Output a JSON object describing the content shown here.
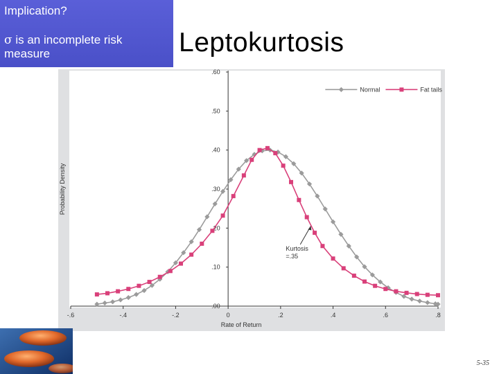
{
  "callout": {
    "question": "Implication?",
    "sigma_symbol": "σ",
    "statement": " is an incomplete risk measure"
  },
  "slide_title": "Leptokurtosis",
  "page_number": "5-35",
  "colors": {
    "callout_bg": "#4f55d0",
    "normal_series": "#9b9b9b",
    "fat_series": "#d9407a",
    "plot_bg": "#ffffff",
    "frame_bg": "#dfe0e2"
  },
  "chart_data": {
    "type": "line",
    "title": "",
    "xlabel": "Rate of Return",
    "ylabel": "Probability Density",
    "xlim": [
      -0.6,
      0.8
    ],
    "ylim": [
      0,
      0.6
    ],
    "x_ticks": [
      -0.6,
      -0.4,
      -0.2,
      0,
      0.2,
      0.4,
      0.6,
      0.8
    ],
    "x_tick_labels": [
      "-.6",
      "-.4",
      "-.2",
      "0",
      ".2",
      ".4",
      ".6",
      ".8"
    ],
    "y_ticks": [
      0,
      0.1,
      0.2,
      0.3,
      0.4,
      0.5,
      0.6
    ],
    "y_tick_labels": [
      ".00",
      ".10",
      ".20",
      ".30",
      ".40",
      ".50",
      ".60"
    ],
    "grid": false,
    "legend_position": "top-right",
    "series": [
      {
        "name": "Normal",
        "marker": "diamond",
        "points": [
          [
            -0.5,
            0.005
          ],
          [
            -0.47,
            0.008
          ],
          [
            -0.44,
            0.011
          ],
          [
            -0.41,
            0.016
          ],
          [
            -0.38,
            0.022
          ],
          [
            -0.35,
            0.03
          ],
          [
            -0.32,
            0.04
          ],
          [
            -0.29,
            0.053
          ],
          [
            -0.26,
            0.069
          ],
          [
            -0.23,
            0.088
          ],
          [
            -0.2,
            0.111
          ],
          [
            -0.17,
            0.137
          ],
          [
            -0.14,
            0.165
          ],
          [
            -0.11,
            0.196
          ],
          [
            -0.08,
            0.229
          ],
          [
            -0.05,
            0.262
          ],
          [
            -0.02,
            0.294
          ],
          [
            0.01,
            0.324
          ],
          [
            0.04,
            0.351
          ],
          [
            0.07,
            0.373
          ],
          [
            0.1,
            0.389
          ],
          [
            0.13,
            0.398
          ],
          [
            0.16,
            0.4
          ],
          [
            0.19,
            0.395
          ],
          [
            0.22,
            0.383
          ],
          [
            0.25,
            0.365
          ],
          [
            0.28,
            0.341
          ],
          [
            0.31,
            0.313
          ],
          [
            0.34,
            0.282
          ],
          [
            0.37,
            0.249
          ],
          [
            0.4,
            0.216
          ],
          [
            0.43,
            0.184
          ],
          [
            0.46,
            0.154
          ],
          [
            0.49,
            0.126
          ],
          [
            0.52,
            0.101
          ],
          [
            0.55,
            0.08
          ],
          [
            0.58,
            0.062
          ],
          [
            0.61,
            0.047
          ],
          [
            0.64,
            0.035
          ],
          [
            0.67,
            0.025
          ],
          [
            0.7,
            0.018
          ],
          [
            0.73,
            0.013
          ],
          [
            0.76,
            0.009
          ],
          [
            0.79,
            0.006
          ],
          [
            0.8,
            0.005
          ]
        ]
      },
      {
        "name": "Fat tails",
        "marker": "square",
        "points": [
          [
            -0.5,
            0.03
          ],
          [
            -0.46,
            0.033
          ],
          [
            -0.42,
            0.038
          ],
          [
            -0.38,
            0.044
          ],
          [
            -0.34,
            0.052
          ],
          [
            -0.3,
            0.062
          ],
          [
            -0.26,
            0.075
          ],
          [
            -0.22,
            0.09
          ],
          [
            -0.18,
            0.109
          ],
          [
            -0.14,
            0.132
          ],
          [
            -0.1,
            0.16
          ],
          [
            -0.06,
            0.193
          ],
          [
            -0.02,
            0.232
          ],
          [
            0.02,
            0.282
          ],
          [
            0.06,
            0.335
          ],
          [
            0.09,
            0.375
          ],
          [
            0.12,
            0.4
          ],
          [
            0.15,
            0.405
          ],
          [
            0.18,
            0.392
          ],
          [
            0.21,
            0.36
          ],
          [
            0.24,
            0.318
          ],
          [
            0.27,
            0.272
          ],
          [
            0.3,
            0.228
          ],
          [
            0.33,
            0.188
          ],
          [
            0.36,
            0.154
          ],
          [
            0.4,
            0.122
          ],
          [
            0.44,
            0.097
          ],
          [
            0.48,
            0.078
          ],
          [
            0.52,
            0.063
          ],
          [
            0.56,
            0.052
          ],
          [
            0.6,
            0.044
          ],
          [
            0.64,
            0.038
          ],
          [
            0.68,
            0.034
          ],
          [
            0.72,
            0.031
          ],
          [
            0.76,
            0.029
          ],
          [
            0.8,
            0.028
          ]
        ]
      }
    ],
    "annotations": [
      {
        "text_line1": "Kurtosis",
        "text_line2": "=.35"
      }
    ]
  }
}
